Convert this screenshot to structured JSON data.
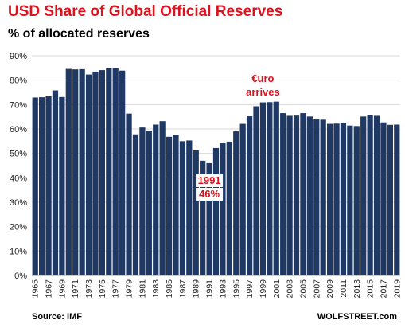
{
  "title": "USD Share of Global  Official Reserves",
  "subtitle": "% of allocated reserves",
  "source": "Source: IMF",
  "site": "WOLFSTREET.com",
  "colors": {
    "bar": "#1f3864",
    "title": "#d8151f",
    "annotation": "#d8151f"
  },
  "chart_data": {
    "type": "bar",
    "title": "USD Share of Global  Official Reserves",
    "ylabel": "% of allocated reserves",
    "xlabel": "",
    "ylim": [
      0,
      90
    ],
    "yticks": [
      "0%",
      "10%",
      "20%",
      "30%",
      "40%",
      "50%",
      "60%",
      "70%",
      "80%",
      "90%"
    ],
    "grid": true,
    "categories": [
      "1965",
      "1966",
      "1967",
      "1968",
      "1969",
      "1970",
      "1971",
      "1972",
      "1973",
      "1974",
      "1975",
      "1976",
      "1977",
      "1978",
      "1979",
      "1980",
      "1981",
      "1982",
      "1983",
      "1984",
      "1985",
      "1986",
      "1987",
      "1988",
      "1989",
      "1990",
      "1991",
      "1992",
      "1993",
      "1994",
      "1995",
      "1996",
      "1997",
      "1998",
      "1999",
      "2000",
      "2001",
      "2002",
      "2003",
      "2004",
      "2005",
      "2006",
      "2007",
      "2008",
      "2009",
      "2010",
      "2011",
      "2012",
      "2013",
      "2014",
      "2015",
      "2016",
      "2017",
      "2018",
      "2019"
    ],
    "xtick_labels": [
      "1965",
      "1967",
      "1969",
      "1971",
      "1973",
      "1975",
      "1977",
      "1979",
      "1981",
      "1983",
      "1985",
      "1987",
      "1989",
      "1991",
      "1993",
      "1995",
      "1997",
      "1999",
      "2001",
      "2003",
      "2005",
      "2007",
      "2009",
      "2011",
      "2013",
      "2015",
      "2017",
      "2019"
    ],
    "values": [
      72.9,
      73.0,
      73.4,
      75.8,
      73.1,
      84.6,
      84.4,
      84.5,
      82.3,
      83.5,
      84.1,
      84.8,
      85.1,
      83.9,
      66.3,
      57.8,
      60.6,
      59.3,
      61.8,
      63.2,
      56.8,
      57.6,
      55.0,
      55.3,
      51.2,
      47.0,
      46.0,
      52.2,
      54.2,
      54.8,
      59.0,
      62.1,
      65.2,
      69.3,
      70.9,
      71.0,
      71.2,
      66.5,
      65.4,
      65.5,
      66.5,
      65.1,
      63.9,
      63.8,
      62.1,
      62.2,
      62.6,
      61.4,
      61.2,
      65.1,
      65.7,
      65.4,
      62.7,
      61.7,
      61.8
    ],
    "annotations": [
      {
        "text": "€uro",
        "x": "1999"
      },
      {
        "text": "arrives",
        "x": "1999"
      },
      {
        "text": "1991",
        "x": "1991"
      },
      {
        "text": "46%",
        "x": "1991"
      }
    ]
  }
}
